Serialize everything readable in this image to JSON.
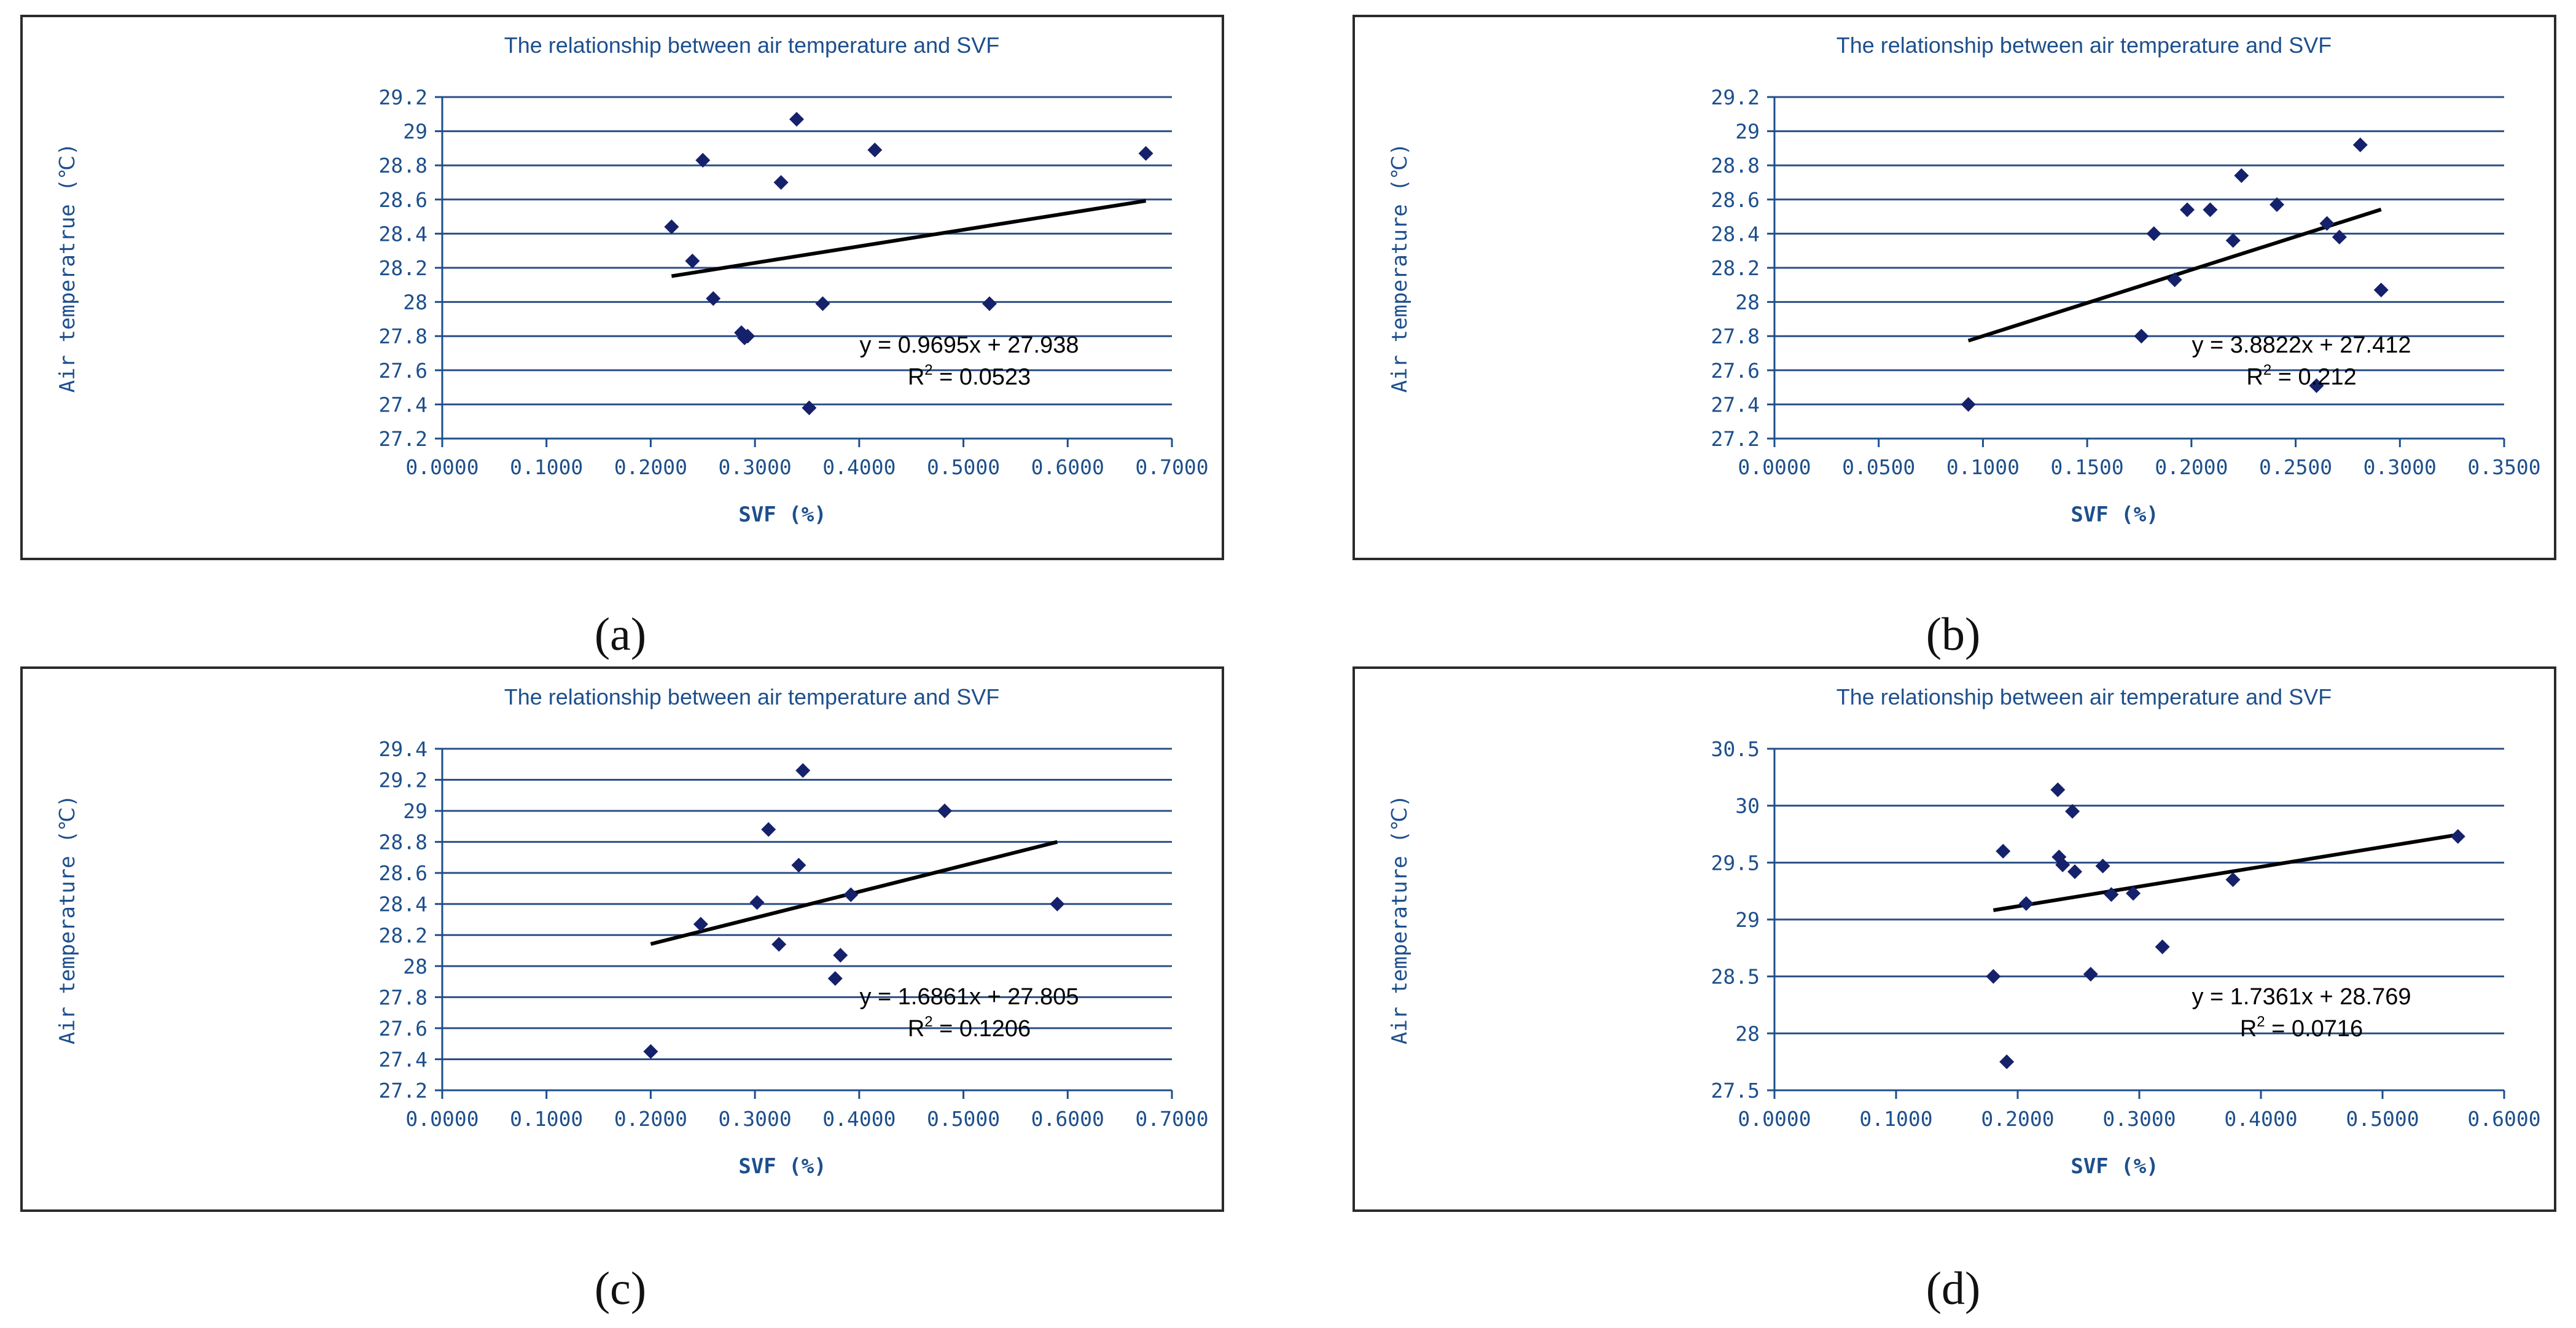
{
  "chart_data": [
    {
      "type": "scatter",
      "panel": "a",
      "caption": "(a)",
      "title": "The relationship between air temperature and SVF",
      "xlabel": "SVF (%)",
      "ylabel": "Air temperatrue (℃)",
      "xlim": [
        0,
        0.7
      ],
      "ylim": [
        27.2,
        29.2
      ],
      "xticks": [
        "0.0000",
        "0.1000",
        "0.2000",
        "0.3000",
        "0.4000",
        "0.5000",
        "0.6000",
        "0.7000"
      ],
      "yticks": [
        "27.2",
        "27.4",
        "27.6",
        "27.8",
        "28",
        "28.2",
        "28.4",
        "28.6",
        "28.8",
        "29",
        "29.2"
      ],
      "x": [
        0.22,
        0.24,
        0.25,
        0.26,
        0.287,
        0.29,
        0.293,
        0.325,
        0.34,
        0.352,
        0.365,
        0.415,
        0.525,
        0.675
      ],
      "y": [
        28.44,
        28.24,
        28.83,
        28.02,
        27.82,
        27.79,
        27.8,
        28.7,
        29.07,
        27.38,
        27.99,
        28.89,
        27.99,
        28.87
      ],
      "trendline": {
        "x": [
          0.22,
          0.675
        ],
        "slope": 0.9695,
        "intercept": 27.938
      },
      "equation": "y = 0.9695x + 27.938",
      "r2_prefix": "R",
      "r2_value": " = 0.0523"
    },
    {
      "type": "scatter",
      "panel": "b",
      "caption": "(b)",
      "title": "The relationship between air temperature and SVF",
      "xlabel": "SVF (%)",
      "ylabel": "Air temperature (℃)",
      "xlim": [
        0,
        0.35
      ],
      "ylim": [
        27.2,
        29.2
      ],
      "xticks": [
        "0.0000",
        "0.0500",
        "0.1000",
        "0.1500",
        "0.2000",
        "0.2500",
        "0.3000",
        "0.3500"
      ],
      "yticks": [
        "27.2",
        "27.4",
        "27.6",
        "27.8",
        "28",
        "28.2",
        "28.4",
        "28.6",
        "28.8",
        "29",
        "29.2"
      ],
      "x": [
        0.093,
        0.176,
        0.182,
        0.192,
        0.198,
        0.209,
        0.22,
        0.224,
        0.241,
        0.26,
        0.265,
        0.271,
        0.281,
        0.291
      ],
      "y": [
        27.4,
        27.8,
        28.4,
        28.13,
        28.54,
        28.54,
        28.36,
        28.74,
        28.57,
        27.51,
        28.46,
        28.38,
        28.92,
        28.07
      ],
      "trendline": {
        "x": [
          0.093,
          0.291
        ],
        "slope": 3.8822,
        "intercept": 27.412
      },
      "equation": "y = 3.8822x + 27.412",
      "r2_prefix": "R",
      "r2_value": " = 0.212"
    },
    {
      "type": "scatter",
      "panel": "c",
      "caption": "(c)",
      "title": "The relationship between air temperature and SVF",
      "xlabel": "SVF (%)",
      "ylabel": "Air temperature (℃)",
      "xlim": [
        0,
        0.7
      ],
      "ylim": [
        27.2,
        29.4
      ],
      "xticks": [
        "0.0000",
        "0.1000",
        "0.2000",
        "0.3000",
        "0.4000",
        "0.5000",
        "0.6000",
        "0.7000"
      ],
      "yticks": [
        "27.2",
        "27.4",
        "27.6",
        "27.8",
        "28",
        "28.2",
        "28.4",
        "28.6",
        "28.8",
        "29",
        "29.2",
        "29.4"
      ],
      "x": [
        0.2,
        0.248,
        0.302,
        0.313,
        0.323,
        0.342,
        0.346,
        0.377,
        0.382,
        0.392,
        0.482,
        0.59
      ],
      "y": [
        27.45,
        28.27,
        28.41,
        28.88,
        28.14,
        28.65,
        29.26,
        27.92,
        28.07,
        28.46,
        29.0,
        28.4
      ],
      "trendline": {
        "x": [
          0.2,
          0.59
        ],
        "slope": 1.6861,
        "intercept": 27.805
      },
      "equation": "y = 1.6861x + 27.805",
      "r2_prefix": "R",
      "r2_value": " = 0.1206"
    },
    {
      "type": "scatter",
      "panel": "d",
      "caption": "(d)",
      "title": "The relationship between air temperature and SVF",
      "xlabel": "SVF (%)",
      "ylabel": "Air temperature (℃)",
      "xlim": [
        0,
        0.6
      ],
      "ylim": [
        27.5,
        30.5
      ],
      "xticks": [
        "0.0000",
        "0.1000",
        "0.2000",
        "0.3000",
        "0.4000",
        "0.5000",
        "0.6000"
      ],
      "yticks": [
        "27.5",
        "28",
        "28.5",
        "29",
        "29.5",
        "30",
        "30.5"
      ],
      "x": [
        0.18,
        0.188,
        0.191,
        0.207,
        0.233,
        0.234,
        0.237,
        0.245,
        0.247,
        0.26,
        0.27,
        0.277,
        0.295,
        0.319,
        0.377,
        0.562
      ],
      "y": [
        28.5,
        29.6,
        27.75,
        29.14,
        30.14,
        29.55,
        29.48,
        29.95,
        29.42,
        28.52,
        29.47,
        29.22,
        29.23,
        28.76,
        29.35,
        29.73
      ],
      "trendline": {
        "x": [
          0.18,
          0.562
        ],
        "slope": 1.7361,
        "intercept": 28.769
      },
      "equation": "y = 1.7361x + 28.769",
      "r2_prefix": "R",
      "r2_value": " = 0.0716"
    }
  ]
}
